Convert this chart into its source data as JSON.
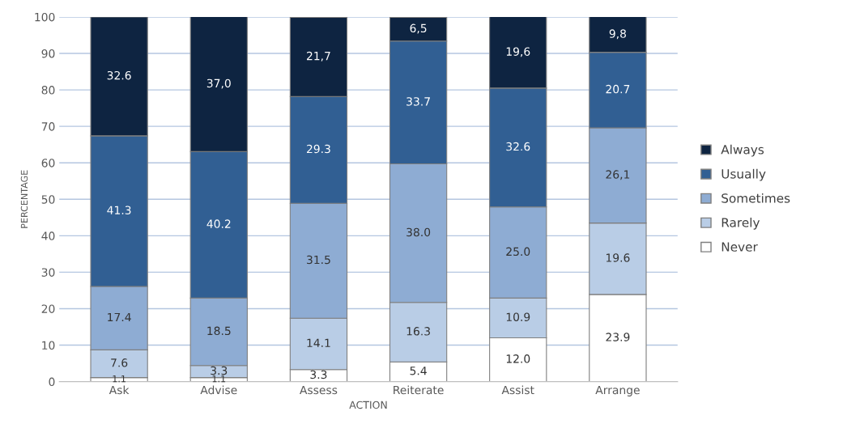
{
  "chart_data": {
    "type": "bar",
    "stacked": true,
    "xlabel": "ACTION",
    "ylabel": "PERCENTAGE",
    "categories": [
      "Ask",
      "Advise",
      "Assess",
      "Reiterate",
      "Assist",
      "Arrange"
    ],
    "series": [
      {
        "name": "Never",
        "color": "#ffffff",
        "values": [
          1.1,
          1.1,
          3.3,
          5.4,
          12.0,
          23.9
        ],
        "value_labels": [
          "1.1",
          "1.1",
          "3.3",
          "5.4",
          "12.0",
          "23.9"
        ]
      },
      {
        "name": "Rarely",
        "color": "#b9cde6",
        "values": [
          7.6,
          3.3,
          14.1,
          16.3,
          10.9,
          19.6
        ],
        "value_labels": [
          "7.6",
          "3.3",
          "14.1",
          "16.3",
          "10.9",
          "19.6"
        ]
      },
      {
        "name": "Sometimes",
        "color": "#8eacd3",
        "values": [
          17.4,
          18.5,
          31.5,
          38.0,
          25.0,
          26.1
        ],
        "value_labels": [
          "17.4",
          "18.5",
          "31.5",
          "38.0",
          "25.0",
          "26,1"
        ]
      },
      {
        "name": "Usually",
        "color": "#315f93",
        "values": [
          41.3,
          40.2,
          29.3,
          33.7,
          32.6,
          20.7
        ],
        "value_labels": [
          "41.3",
          "40.2",
          "29.3",
          "33.7",
          "32.6",
          "20.7"
        ]
      },
      {
        "name": "Always",
        "color": "#0e2441",
        "values": [
          32.6,
          37.0,
          21.7,
          6.5,
          19.6,
          9.8
        ],
        "value_labels": [
          "32.6",
          "37,0",
          "21,7",
          "6,5",
          "19,6",
          "9,8"
        ]
      }
    ],
    "ylim": [
      0,
      100
    ],
    "yticks": [
      0,
      10,
      20,
      30,
      40,
      50,
      60,
      70,
      80,
      90,
      100
    ],
    "grid": "y",
    "legend": "right"
  }
}
